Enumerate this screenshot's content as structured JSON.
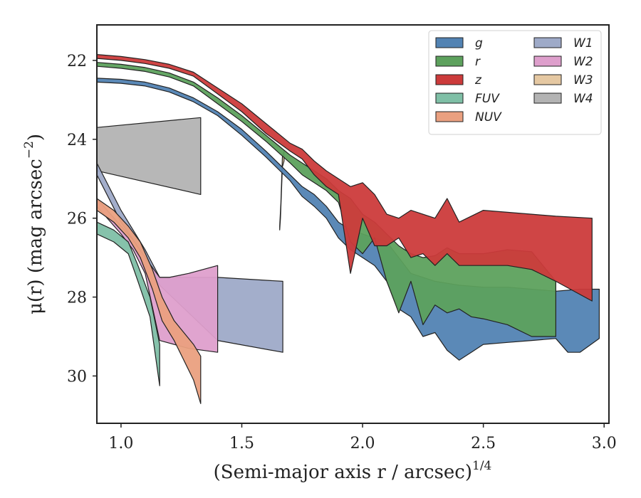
{
  "chart_data": {
    "type": "area",
    "title": "",
    "xlabel": "(Semi-major axis r / arcsec)",
    "xlabel_sup": "1/4",
    "ylabel": "μ(r) (mag arcsec",
    "ylabel_sup": "−2",
    "ylabel_end": ")",
    "xlim": [
      0.9,
      3.02
    ],
    "ylim": [
      31.2,
      21.1
    ],
    "y_inverted": true,
    "grid": false,
    "legend_placement": "top-right",
    "x_ticks": [
      1.0,
      1.5,
      2.0,
      2.5,
      3.0
    ],
    "x_tick_labels": [
      "1.0",
      "1.5",
      "2.0",
      "2.5",
      "3.0"
    ],
    "y_ticks": [
      22,
      24,
      26,
      28,
      30
    ],
    "y_tick_labels": [
      "22",
      "24",
      "26",
      "28",
      "30"
    ],
    "series": [
      {
        "name": "W4",
        "color": "#b3b3b3",
        "upper": [
          [
            0.9,
            23.7
          ],
          [
            1.33,
            23.45
          ]
        ],
        "lower": [
          [
            0.9,
            24.8
          ],
          [
            1.33,
            25.4
          ]
        ]
      },
      {
        "name": "W1",
        "color": "#9eaac8",
        "upper": [
          [
            0.9,
            24.6
          ],
          [
            1.0,
            25.8
          ],
          [
            1.05,
            26.3
          ],
          [
            1.1,
            26.8
          ],
          [
            1.16,
            27.5
          ],
          [
            1.4,
            27.5
          ],
          [
            1.67,
            27.6
          ]
        ],
        "lower": [
          [
            0.9,
            24.9
          ],
          [
            1.0,
            26.1
          ],
          [
            1.05,
            26.55
          ],
          [
            1.1,
            27.1
          ],
          [
            1.16,
            27.7
          ],
          [
            1.4,
            29.1
          ],
          [
            1.67,
            29.4
          ]
        ]
      },
      {
        "name": "W2",
        "color": "#de9fcc",
        "upper": [
          [
            0.9,
            25.5
          ],
          [
            1.0,
            26.2
          ],
          [
            1.05,
            26.55
          ],
          [
            1.1,
            27.0
          ],
          [
            1.16,
            27.5
          ],
          [
            1.2,
            27.5
          ],
          [
            1.28,
            27.4
          ],
          [
            1.4,
            27.2
          ]
        ],
        "lower": [
          [
            0.9,
            25.7
          ],
          [
            1.0,
            26.4
          ],
          [
            1.05,
            26.8
          ],
          [
            1.1,
            27.4
          ],
          [
            1.16,
            29.1
          ],
          [
            1.28,
            29.3
          ],
          [
            1.4,
            29.4
          ]
        ]
      },
      {
        "name": "W3",
        "color": "#e5c8a2",
        "upper": [
          [
            1.657,
            26.2
          ],
          [
            1.662,
            25.6
          ],
          [
            1.668,
            24.45
          ],
          [
            1.675,
            24.3
          ]
        ],
        "lower": [
          [
            1.657,
            26.3
          ],
          [
            1.66,
            26.0
          ],
          [
            1.668,
            24.7
          ],
          [
            1.675,
            24.55
          ]
        ]
      },
      {
        "name": "FUV",
        "color": "#7fbfa6",
        "upper": [
          [
            0.9,
            26.1
          ],
          [
            0.97,
            26.3
          ],
          [
            1.03,
            26.6
          ],
          [
            1.07,
            27.2
          ],
          [
            1.12,
            28.0
          ],
          [
            1.16,
            29.2
          ]
        ],
        "lower": [
          [
            0.9,
            26.4
          ],
          [
            0.97,
            26.6
          ],
          [
            1.03,
            26.9
          ],
          [
            1.07,
            27.6
          ],
          [
            1.12,
            28.5
          ],
          [
            1.16,
            30.25
          ]
        ]
      },
      {
        "name": "NUV",
        "color": "#eaa080",
        "upper": [
          [
            0.9,
            25.5
          ],
          [
            0.97,
            25.8
          ],
          [
            1.03,
            26.2
          ],
          [
            1.08,
            26.6
          ],
          [
            1.13,
            27.3
          ],
          [
            1.17,
            28.0
          ],
          [
            1.22,
            28.6
          ],
          [
            1.3,
            29.2
          ],
          [
            1.33,
            29.5
          ]
        ],
        "lower": [
          [
            0.9,
            25.8
          ],
          [
            0.97,
            26.1
          ],
          [
            1.03,
            26.5
          ],
          [
            1.08,
            27.0
          ],
          [
            1.13,
            27.8
          ],
          [
            1.17,
            28.6
          ],
          [
            1.22,
            29.1
          ],
          [
            1.3,
            30.1
          ],
          [
            1.33,
            30.7
          ]
        ]
      },
      {
        "name": "g",
        "color": "#5283b3",
        "upper": [
          [
            0.9,
            22.45
          ],
          [
            1.0,
            22.48
          ],
          [
            1.1,
            22.55
          ],
          [
            1.2,
            22.7
          ],
          [
            1.3,
            22.95
          ],
          [
            1.4,
            23.3
          ],
          [
            1.5,
            23.75
          ],
          [
            1.6,
            24.3
          ],
          [
            1.7,
            24.9
          ],
          [
            1.75,
            25.2
          ],
          [
            1.8,
            25.4
          ],
          [
            1.85,
            25.7
          ],
          [
            1.9,
            26.1
          ],
          [
            1.95,
            26.3
          ],
          [
            2.0,
            26.4
          ],
          [
            2.05,
            26.5
          ],
          [
            2.1,
            26.6
          ],
          [
            2.15,
            27.0
          ],
          [
            2.2,
            27.4
          ],
          [
            2.3,
            27.6
          ],
          [
            2.4,
            27.7
          ],
          [
            2.5,
            27.75
          ],
          [
            2.6,
            27.75
          ],
          [
            2.7,
            27.8
          ],
          [
            2.8,
            27.85
          ],
          [
            2.9,
            27.8
          ],
          [
            2.98,
            27.8
          ]
        ],
        "lower": [
          [
            0.9,
            22.55
          ],
          [
            1.0,
            22.58
          ],
          [
            1.1,
            22.65
          ],
          [
            1.2,
            22.8
          ],
          [
            1.3,
            23.05
          ],
          [
            1.4,
            23.4
          ],
          [
            1.5,
            23.9
          ],
          [
            1.6,
            24.45
          ],
          [
            1.7,
            25.05
          ],
          [
            1.75,
            25.45
          ],
          [
            1.8,
            25.7
          ],
          [
            1.85,
            26.0
          ],
          [
            1.9,
            26.5
          ],
          [
            1.95,
            26.8
          ],
          [
            2.0,
            27.0
          ],
          [
            2.05,
            27.2
          ],
          [
            2.1,
            27.6
          ],
          [
            2.15,
            28.3
          ],
          [
            2.2,
            28.5
          ],
          [
            2.25,
            29.0
          ],
          [
            2.3,
            28.9
          ],
          [
            2.35,
            29.35
          ],
          [
            2.4,
            29.6
          ],
          [
            2.45,
            29.4
          ],
          [
            2.5,
            29.2
          ],
          [
            2.6,
            29.15
          ],
          [
            2.7,
            29.1
          ],
          [
            2.8,
            29.05
          ],
          [
            2.85,
            29.4
          ],
          [
            2.9,
            29.4
          ],
          [
            2.98,
            29.05
          ]
        ]
      },
      {
        "name": "r",
        "color": "#5da15d",
        "upper": [
          [
            0.9,
            22.05
          ],
          [
            1.0,
            22.1
          ],
          [
            1.1,
            22.18
          ],
          [
            1.2,
            22.32
          ],
          [
            1.3,
            22.55
          ],
          [
            1.4,
            22.95
          ],
          [
            1.5,
            23.4
          ],
          [
            1.6,
            23.9
          ],
          [
            1.7,
            24.4
          ],
          [
            1.75,
            24.6
          ],
          [
            1.8,
            24.8
          ],
          [
            1.85,
            25.0
          ],
          [
            1.9,
            25.3
          ],
          [
            1.95,
            25.5
          ],
          [
            2.0,
            25.9
          ],
          [
            2.05,
            26.1
          ],
          [
            2.1,
            26.4
          ],
          [
            2.15,
            26.7
          ],
          [
            2.2,
            26.9
          ],
          [
            2.25,
            27.0
          ],
          [
            2.3,
            26.95
          ],
          [
            2.35,
            26.75
          ],
          [
            2.4,
            26.9
          ],
          [
            2.5,
            26.9
          ],
          [
            2.6,
            26.8
          ],
          [
            2.7,
            26.85
          ],
          [
            2.8,
            27.6
          ]
        ],
        "lower": [
          [
            0.9,
            22.15
          ],
          [
            1.0,
            22.2
          ],
          [
            1.1,
            22.28
          ],
          [
            1.2,
            22.42
          ],
          [
            1.3,
            22.65
          ],
          [
            1.4,
            23.1
          ],
          [
            1.5,
            23.55
          ],
          [
            1.6,
            24.05
          ],
          [
            1.7,
            24.6
          ],
          [
            1.75,
            24.9
          ],
          [
            1.8,
            25.1
          ],
          [
            1.85,
            25.3
          ],
          [
            1.9,
            25.6
          ],
          [
            1.95,
            26.6
          ],
          [
            2.0,
            26.9
          ],
          [
            2.05,
            26.5
          ],
          [
            2.1,
            27.6
          ],
          [
            2.15,
            28.4
          ],
          [
            2.2,
            27.6
          ],
          [
            2.25,
            28.7
          ],
          [
            2.3,
            28.2
          ],
          [
            2.35,
            28.4
          ],
          [
            2.4,
            28.3
          ],
          [
            2.45,
            28.5
          ],
          [
            2.5,
            28.55
          ],
          [
            2.6,
            28.7
          ],
          [
            2.7,
            29.0
          ],
          [
            2.8,
            29.0
          ]
        ]
      },
      {
        "name": "z",
        "color": "#cc3b3b",
        "upper": [
          [
            0.9,
            21.85
          ],
          [
            1.0,
            21.9
          ],
          [
            1.1,
            21.98
          ],
          [
            1.2,
            22.1
          ],
          [
            1.3,
            22.3
          ],
          [
            1.4,
            22.7
          ],
          [
            1.5,
            23.1
          ],
          [
            1.6,
            23.6
          ],
          [
            1.7,
            24.1
          ],
          [
            1.75,
            24.25
          ],
          [
            1.8,
            24.55
          ],
          [
            1.85,
            24.8
          ],
          [
            1.9,
            25.0
          ],
          [
            1.95,
            25.2
          ],
          [
            2.0,
            25.1
          ],
          [
            2.05,
            25.4
          ],
          [
            2.1,
            25.9
          ],
          [
            2.15,
            26.0
          ],
          [
            2.2,
            25.8
          ],
          [
            2.3,
            26.0
          ],
          [
            2.35,
            25.5
          ],
          [
            2.4,
            26.1
          ],
          [
            2.5,
            25.8
          ],
          [
            2.6,
            25.85
          ],
          [
            2.7,
            25.9
          ],
          [
            2.8,
            25.95
          ],
          [
            2.95,
            26.0
          ]
        ],
        "lower": [
          [
            0.9,
            21.95
          ],
          [
            1.0,
            22.0
          ],
          [
            1.1,
            22.08
          ],
          [
            1.2,
            22.2
          ],
          [
            1.3,
            22.4
          ],
          [
            1.4,
            22.85
          ],
          [
            1.5,
            23.3
          ],
          [
            1.6,
            23.85
          ],
          [
            1.7,
            24.3
          ],
          [
            1.75,
            24.5
          ],
          [
            1.8,
            24.9
          ],
          [
            1.85,
            25.2
          ],
          [
            1.9,
            25.4
          ],
          [
            1.95,
            27.4
          ],
          [
            2.0,
            26.0
          ],
          [
            2.05,
            26.7
          ],
          [
            2.1,
            26.7
          ],
          [
            2.15,
            26.5
          ],
          [
            2.2,
            27.0
          ],
          [
            2.25,
            26.9
          ],
          [
            2.3,
            27.2
          ],
          [
            2.35,
            26.9
          ],
          [
            2.4,
            27.2
          ],
          [
            2.5,
            27.2
          ],
          [
            2.6,
            27.2
          ],
          [
            2.7,
            27.3
          ],
          [
            2.8,
            27.6
          ],
          [
            2.95,
            28.1
          ]
        ]
      }
    ],
    "draw_order": [
      "W4",
      "W1",
      "W2",
      "W3",
      "FUV",
      "NUV",
      "g",
      "r",
      "z"
    ],
    "legend_order": [
      "g",
      "r",
      "z",
      "FUV",
      "NUV",
      "W1",
      "W2",
      "W3",
      "W4"
    ],
    "legend_columns": 2
  }
}
